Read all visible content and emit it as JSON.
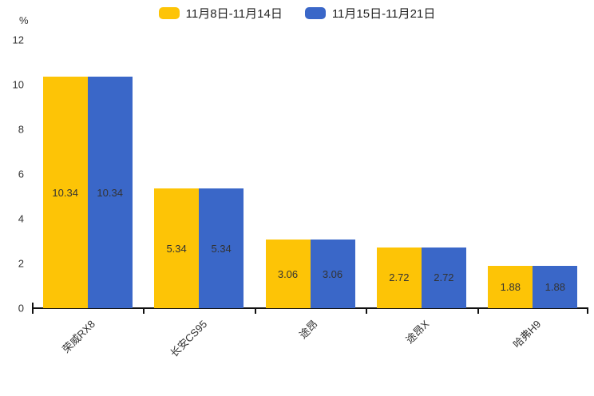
{
  "page": {
    "background": "#ffffff"
  },
  "legend": {
    "position": "top-center",
    "items": [
      {
        "label": "11月8日-11月14日",
        "color": "#FDC406"
      },
      {
        "label": "11月15日-11月21日",
        "color": "#3A67C8"
      }
    ]
  },
  "chart_data": {
    "type": "bar",
    "title": "",
    "xlabel": "",
    "ylabel": "%",
    "ylim": [
      0,
      12
    ],
    "yticks": [
      0,
      2,
      4,
      6,
      8,
      10,
      12
    ],
    "grid": false,
    "legend_position": "top",
    "categories": [
      "荣威RX8",
      "长安CS95",
      "途昂",
      "途昂X",
      "哈弗H9"
    ],
    "series": [
      {
        "name": "11月8日-11月14日",
        "color": "#FDC406",
        "values": [
          10.34,
          5.34,
          3.06,
          2.72,
          1.88
        ]
      },
      {
        "name": "11月15日-11月21日",
        "color": "#3A67C8",
        "values": [
          10.34,
          5.34,
          3.06,
          2.72,
          1.88
        ]
      }
    ],
    "value_labels_shown": true,
    "value_label_color": "#333333",
    "axis_color": "#111111"
  }
}
